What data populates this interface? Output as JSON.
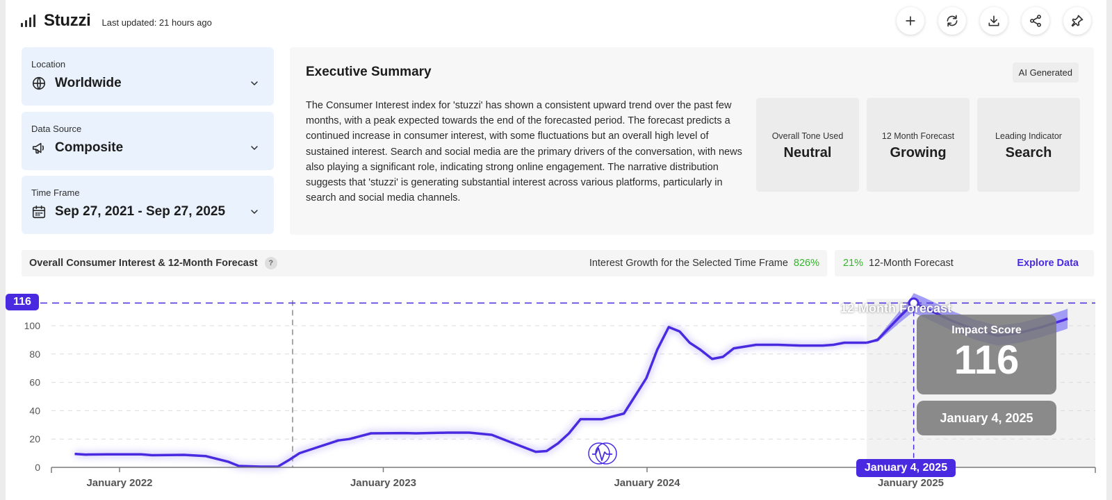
{
  "header": {
    "brand": "Stuzzi",
    "updated": "Last updated: 21 hours ago",
    "tools": [
      "add-icon",
      "refresh-icon",
      "download-icon",
      "share-icon",
      "pin-icon"
    ]
  },
  "filters": {
    "location": {
      "label": "Location",
      "value": "Worldwide"
    },
    "data_source": {
      "label": "Data Source",
      "value": "Composite"
    },
    "time_frame": {
      "label": "Time Frame",
      "value": "Sep 27, 2021 - Sep 27, 2025"
    }
  },
  "summary": {
    "title": "Executive Summary",
    "badge": "AI Generated",
    "text": "The Consumer Interest index for 'stuzzi' has shown a consistent upward trend over the past few months, with a peak expected towards the end of the forecasted period. The forecast predicts a continued increase in consumer interest, with some fluctuations but an overall high level of sustained interest. Search and social media are the primary drivers of the conversation, with news also playing a significant role, indicating strong online engagement. The narrative distribution suggests that 'stuzzi' is generating substantial interest across various platforms, particularly in search and social media channels.",
    "stats": [
      {
        "label": "Overall Tone Used",
        "value": "Neutral"
      },
      {
        "label": "12 Month Forecast",
        "value": "Growing"
      },
      {
        "label": "Leading Indicator",
        "value": "Search"
      }
    ]
  },
  "chart_header": {
    "title": "Overall Consumer Interest & 12-Month Forecast",
    "help": "?",
    "growth_label": "Interest Growth for the Selected Time Frame",
    "growth_value": "826%",
    "forecast_pct": "21%",
    "forecast_label": "12-Month Forecast",
    "explore": "Explore Data"
  },
  "chart_overlay": {
    "peak_value": "116",
    "forecast_region_label": "12-Month Forecast",
    "impact_label": "Impact Score",
    "impact_value": "116",
    "impact_date": "January 4, 2025",
    "cursor_date": "January 4, 2025"
  },
  "chart_data": {
    "type": "line",
    "ylim": [
      0,
      116
    ],
    "yticks": [
      "0",
      "20",
      "40",
      "60",
      "80",
      "100"
    ],
    "xticks": [
      "January 2022",
      "January 2023",
      "January 2024",
      "January 2025"
    ],
    "line_color": "#4a2ae0",
    "band_color": "#8f86f5",
    "forecast_bg": "#f2f2f2",
    "history": [
      [
        "2021-10-31",
        9.5
      ],
      [
        "2021-11-15",
        9
      ],
      [
        "2021-12-15",
        9.2
      ],
      [
        "2022-01-31",
        9.2
      ],
      [
        "2022-02-15",
        8.6
      ],
      [
        "2022-03-31",
        8.8
      ],
      [
        "2022-04-30",
        8
      ],
      [
        "2022-05-31",
        4
      ],
      [
        "2022-06-15",
        1
      ],
      [
        "2022-07-15",
        0.5
      ],
      [
        "2022-08-08",
        0.5
      ],
      [
        "2022-08-23",
        5
      ],
      [
        "2022-09-07",
        10
      ],
      [
        "2022-10-01",
        14
      ],
      [
        "2022-10-31",
        19
      ],
      [
        "2022-11-15",
        20
      ],
      [
        "2022-12-15",
        24
      ],
      [
        "2023-01-31",
        24.2
      ],
      [
        "2023-02-15",
        24
      ],
      [
        "2023-03-31",
        24.5
      ],
      [
        "2023-04-30",
        24.5
      ],
      [
        "2023-05-31",
        23
      ],
      [
        "2023-06-30",
        17
      ],
      [
        "2023-07-31",
        11
      ],
      [
        "2023-08-15",
        11.5
      ],
      [
        "2023-08-31",
        17
      ],
      [
        "2023-09-15",
        24
      ],
      [
        "2023-10-01",
        34
      ],
      [
        "2023-10-31",
        34
      ],
      [
        "2023-11-15",
        36
      ],
      [
        "2023-11-30",
        38
      ],
      [
        "2023-12-15",
        50
      ],
      [
        "2023-12-31",
        63
      ],
      [
        "2024-01-15",
        83
      ],
      [
        "2024-01-31",
        99
      ],
      [
        "2024-02-15",
        96
      ],
      [
        "2024-02-29",
        88
      ],
      [
        "2024-03-15",
        83
      ],
      [
        "2024-03-31",
        76.5
      ],
      [
        "2024-04-15",
        78
      ],
      [
        "2024-04-30",
        84
      ],
      [
        "2024-05-31",
        86.5
      ],
      [
        "2024-06-30",
        86.5
      ],
      [
        "2024-07-31",
        86
      ],
      [
        "2024-08-31",
        86
      ],
      [
        "2024-09-15",
        86.5
      ],
      [
        "2024-09-30",
        88
      ],
      [
        "2024-10-31",
        88
      ]
    ],
    "forecast": [
      [
        "2024-10-31",
        88
      ],
      [
        "2024-11-15",
        90
      ],
      [
        "2024-11-30",
        98
      ],
      [
        "2024-12-15",
        106
      ],
      [
        "2024-12-31",
        114
      ],
      [
        "2025-01-04",
        116
      ],
      [
        "2025-01-18",
        113
      ],
      [
        "2025-02-28",
        103
      ],
      [
        "2025-03-31",
        97
      ],
      [
        "2025-04-30",
        93
      ],
      [
        "2025-05-31",
        95
      ],
      [
        "2025-06-30",
        99
      ],
      [
        "2025-07-31",
        104
      ],
      [
        "2025-08-05",
        105
      ]
    ]
  }
}
